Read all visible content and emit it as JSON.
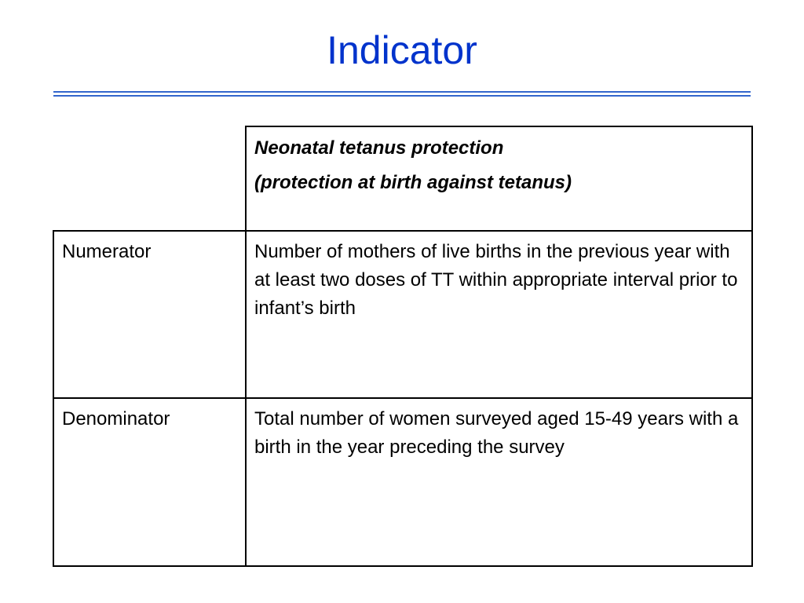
{
  "slide": {
    "title": "Indicator",
    "accent_color": "#0033cc",
    "rule_color": "#3366cc"
  },
  "table": {
    "header": {
      "label": "",
      "lines": [
        "Neonatal tetanus protection",
        "(protection at birth against tetanus)"
      ]
    },
    "rows": [
      {
        "label": "Numerator",
        "value": "Number of mothers of live births in the previous year with at least two doses of TT within appropriate interval prior to infant’s birth"
      },
      {
        "label": "Denominator",
        "value": "Total number of women surveyed aged 15-49 years with a birth in the year preceding the survey"
      }
    ]
  }
}
